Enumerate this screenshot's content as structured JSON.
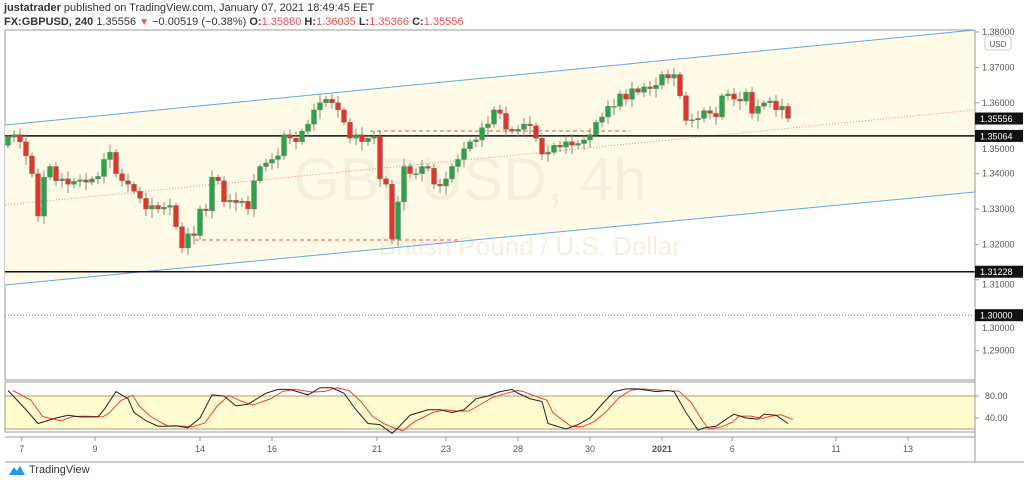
{
  "header": {
    "author": "justatrader",
    "published_text": "published on TradingView.com, January 07, 2021 18:49:45 EET",
    "symbol": "FX:GBPUSD, 240",
    "last": "1.35556",
    "change": "−0.00519 (−0.38%)",
    "o_label": "O:",
    "o": "1.35880",
    "h_label": "H:",
    "h": "1.36035",
    "l_label": "L:",
    "l": "1.35366",
    "c_label": "C:",
    "c": "1.35556"
  },
  "watermark": {
    "symbol": "GBPUSD, 4h",
    "description": "British Pound / U.S. Dollar"
  },
  "footer": {
    "brand": "TradingView"
  },
  "colors": {
    "up": "#26a64a",
    "down": "#e8322a",
    "channel": "#5ea8e8",
    "channel_fill": "#fffbe6",
    "stoch_k": "#222222",
    "stoch_d": "#ff3b30",
    "stoch_band": "#fffdd0"
  },
  "chart_data": {
    "type": "candlestick",
    "currency": "USD",
    "ylim": [
      1.28,
      1.38
    ],
    "y_ticks": [
      "1.38000",
      "1.37000",
      "1.36000",
      "1.35000",
      "1.34000",
      "1.33000",
      "1.32000",
      "1.31000",
      "1.30000",
      "1.29000"
    ],
    "y_tick_values": [
      1.38,
      1.37,
      1.36,
      1.35,
      1.34,
      1.33,
      1.32,
      1.31,
      1.3,
      1.29
    ],
    "price_labels": [
      {
        "text": "1.35556",
        "value": 1.35556
      },
      {
        "text": "1.35064",
        "value": 1.35064
      },
      {
        "text": "1.31228",
        "value": 1.31228
      },
      {
        "text": "1.30000",
        "value": 1.3
      }
    ],
    "horizontal_levels": [
      1.35064,
      1.31228,
      1.3
    ],
    "x_ticks": [
      "7",
      "9",
      "14",
      "16",
      "21",
      "23",
      "28",
      "30",
      "2021",
      "6",
      "11",
      "13"
    ],
    "first_open": 1.348,
    "closes": [
      1.3503,
      1.351,
      1.349,
      1.345,
      1.34,
      1.328,
      1.339,
      1.342,
      1.338,
      1.3385,
      1.337,
      1.3378,
      1.3382,
      1.3376,
      1.3385,
      1.3392,
      1.344,
      1.346,
      1.34,
      1.338,
      1.337,
      1.335,
      1.333,
      1.33,
      1.331,
      1.33,
      1.3305,
      1.331,
      1.325,
      1.319,
      1.323,
      1.3225,
      1.33,
      1.3295,
      1.339,
      1.338,
      1.332,
      1.3325,
      1.3318,
      1.3322,
      1.33,
      1.338,
      1.342,
      1.343,
      1.344,
      1.345,
      1.351,
      1.35,
      1.349,
      1.352,
      1.354,
      1.358,
      1.36,
      1.361,
      1.36,
      1.358,
      1.3545,
      1.35,
      1.351,
      1.349,
      1.35,
      1.3505,
      1.3385,
      1.337,
      1.3215,
      1.332,
      1.342,
      1.34,
      1.34,
      1.342,
      1.3415,
      1.337,
      1.3365,
      1.3385,
      1.342,
      1.344,
      1.347,
      1.349,
      1.3495,
      1.353,
      1.354,
      1.358,
      1.357,
      1.3525,
      1.352,
      1.3525,
      1.354,
      1.3535,
      1.35,
      1.3455,
      1.346,
      1.348,
      1.3475,
      1.349,
      1.348,
      1.3485,
      1.3495,
      1.351,
      1.3545,
      1.356,
      1.359,
      1.359,
      1.3625,
      1.361,
      1.364,
      1.363,
      1.3645,
      1.364,
      1.365,
      1.368,
      1.367,
      1.368,
      1.362,
      1.355,
      1.3552,
      1.3556,
      1.3578,
      1.357,
      1.356,
      1.362,
      1.3625,
      1.361,
      1.3605,
      1.363,
      1.357,
      1.359,
      1.36,
      1.3605,
      1.358,
      1.359,
      1.3556
    ],
    "stochastic": {
      "levels": [
        "80.00",
        "40.00"
      ],
      "band": [
        20,
        80
      ],
      "ylim": [
        0,
        100
      ],
      "k": [
        [
          0,
          90
        ],
        [
          3,
          55
        ],
        [
          5,
          30
        ],
        [
          8,
          40
        ],
        [
          10,
          45
        ],
        [
          12,
          42
        ],
        [
          15,
          42
        ],
        [
          16,
          55
        ],
        [
          18,
          88
        ],
        [
          20,
          75
        ],
        [
          21,
          50
        ],
        [
          23,
          35
        ],
        [
          25,
          25
        ],
        [
          26,
          25
        ],
        [
          28,
          26
        ],
        [
          30,
          22
        ],
        [
          32,
          40
        ],
        [
          34,
          82
        ],
        [
          36,
          80
        ],
        [
          38,
          62
        ],
        [
          40,
          65
        ],
        [
          43,
          85
        ],
        [
          45,
          92
        ],
        [
          47,
          92
        ],
        [
          50,
          82
        ],
        [
          52,
          95
        ],
        [
          54,
          95
        ],
        [
          56,
          85
        ],
        [
          58,
          55
        ],
        [
          60,
          30
        ],
        [
          62,
          28
        ],
        [
          64,
          12
        ],
        [
          65,
          22
        ],
        [
          67,
          45
        ],
        [
          70,
          55
        ],
        [
          72,
          55
        ],
        [
          74,
          50
        ],
        [
          76,
          55
        ],
        [
          78,
          75
        ],
        [
          80,
          80
        ],
        [
          82,
          88
        ],
        [
          84,
          92
        ],
        [
          85,
          85
        ],
        [
          87,
          75
        ],
        [
          89,
          70
        ],
        [
          90,
          30
        ],
        [
          93,
          20
        ],
        [
          95,
          28
        ],
        [
          97,
          40
        ],
        [
          99,
          65
        ],
        [
          101,
          88
        ],
        [
          103,
          93
        ],
        [
          105,
          93
        ],
        [
          108,
          88
        ],
        [
          110,
          90
        ],
        [
          111,
          88
        ],
        [
          113,
          50
        ],
        [
          115,
          18
        ],
        [
          116,
          22
        ],
        [
          118,
          25
        ],
        [
          120,
          40
        ],
        [
          121,
          47
        ],
        [
          123,
          40
        ],
        [
          125,
          38
        ],
        [
          126,
          47
        ],
        [
          128,
          45
        ],
        [
          130,
          30
        ]
      ]
    }
  }
}
